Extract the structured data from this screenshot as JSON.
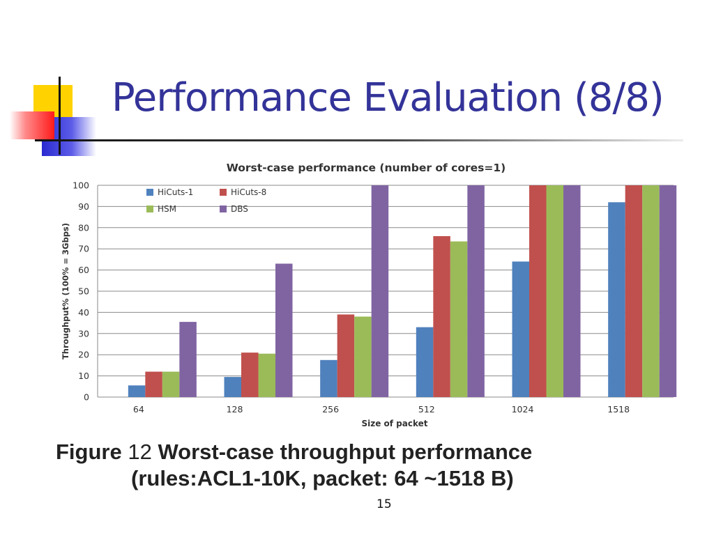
{
  "slide": {
    "title": "Performance Evaluation (8/8)",
    "caption": {
      "prefix": "Figure",
      "number": "12",
      "line1": "Worst-case throughput performance",
      "line2": "(rules:ACL1-10K, packet: 64 ~1518 B)"
    },
    "page_number": "15"
  },
  "colors": {
    "title": "#333399",
    "HiCuts-1": "#4f81bd",
    "HiCuts-8": "#c0504d",
    "HSM": "#9bbb59",
    "DBS": "#8064a2"
  },
  "chart_data": {
    "type": "bar",
    "title": "Worst-case performance (number of cores=1)",
    "xlabel": "Size of packet",
    "ylabel": "Throughput% (100% = 3Gbps)",
    "categories": [
      "64",
      "128",
      "256",
      "512",
      "1024",
      "1518"
    ],
    "ylim": [
      0,
      100
    ],
    "yticks": [
      0,
      10,
      20,
      30,
      40,
      50,
      60,
      70,
      80,
      90,
      100
    ],
    "grid": true,
    "legend_position": "top-left",
    "series": [
      {
        "name": "HiCuts-1",
        "values": [
          5.5,
          9.5,
          17.5,
          33,
          64,
          92
        ]
      },
      {
        "name": "HiCuts-8",
        "values": [
          12,
          21,
          39,
          76,
          100,
          100
        ]
      },
      {
        "name": "HSM",
        "values": [
          12,
          20.5,
          38,
          73.5,
          100,
          100
        ]
      },
      {
        "name": "DBS",
        "values": [
          35.5,
          63,
          100,
          100,
          100,
          100
        ]
      }
    ]
  }
}
